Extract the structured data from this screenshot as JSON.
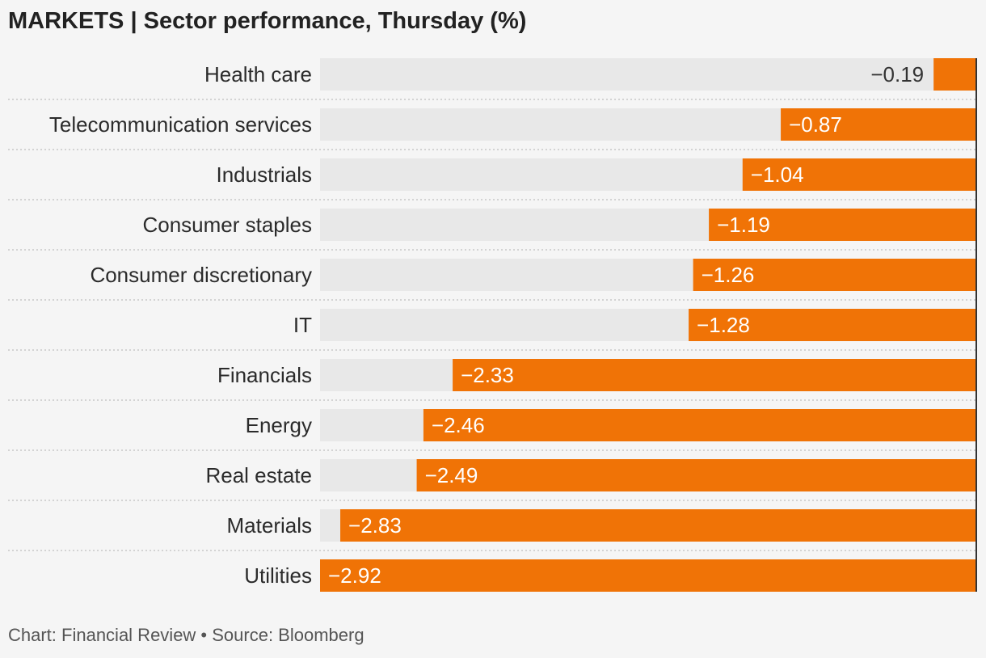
{
  "title": "MARKETS | Sector performance, Thursday (%)",
  "footer": "Chart: Financial Review • Source: Bloomberg",
  "colors": {
    "bar": "#f07306",
    "track": "#e8e8e8",
    "label_on_bar": "#ffffff",
    "label_off_bar": "#333333",
    "axis_line": "#333333",
    "row_separator": "#c8c8c8"
  },
  "chart_data": {
    "type": "bar",
    "orientation": "horizontal",
    "title": "MARKETS | Sector performance, Thursday (%)",
    "categories": [
      "Health care",
      "Telecommunication services",
      "Industrials",
      "Consumer staples",
      "Consumer discretionary",
      "IT",
      "Financials",
      "Energy",
      "Real estate",
      "Materials",
      "Utilities"
    ],
    "values": [
      -0.19,
      -0.87,
      -1.04,
      -1.19,
      -1.26,
      -1.28,
      -2.33,
      -2.46,
      -2.49,
      -2.83,
      -2.92
    ],
    "value_labels": [
      "−0.19",
      "−0.87",
      "−1.04",
      "−1.19",
      "−1.26",
      "−1.28",
      "−2.33",
      "−2.46",
      "−2.49",
      "−2.83",
      "−2.92"
    ],
    "xlim": [
      -2.92,
      0
    ],
    "xlabel": "",
    "ylabel": "",
    "grid": false,
    "legend": "none"
  }
}
